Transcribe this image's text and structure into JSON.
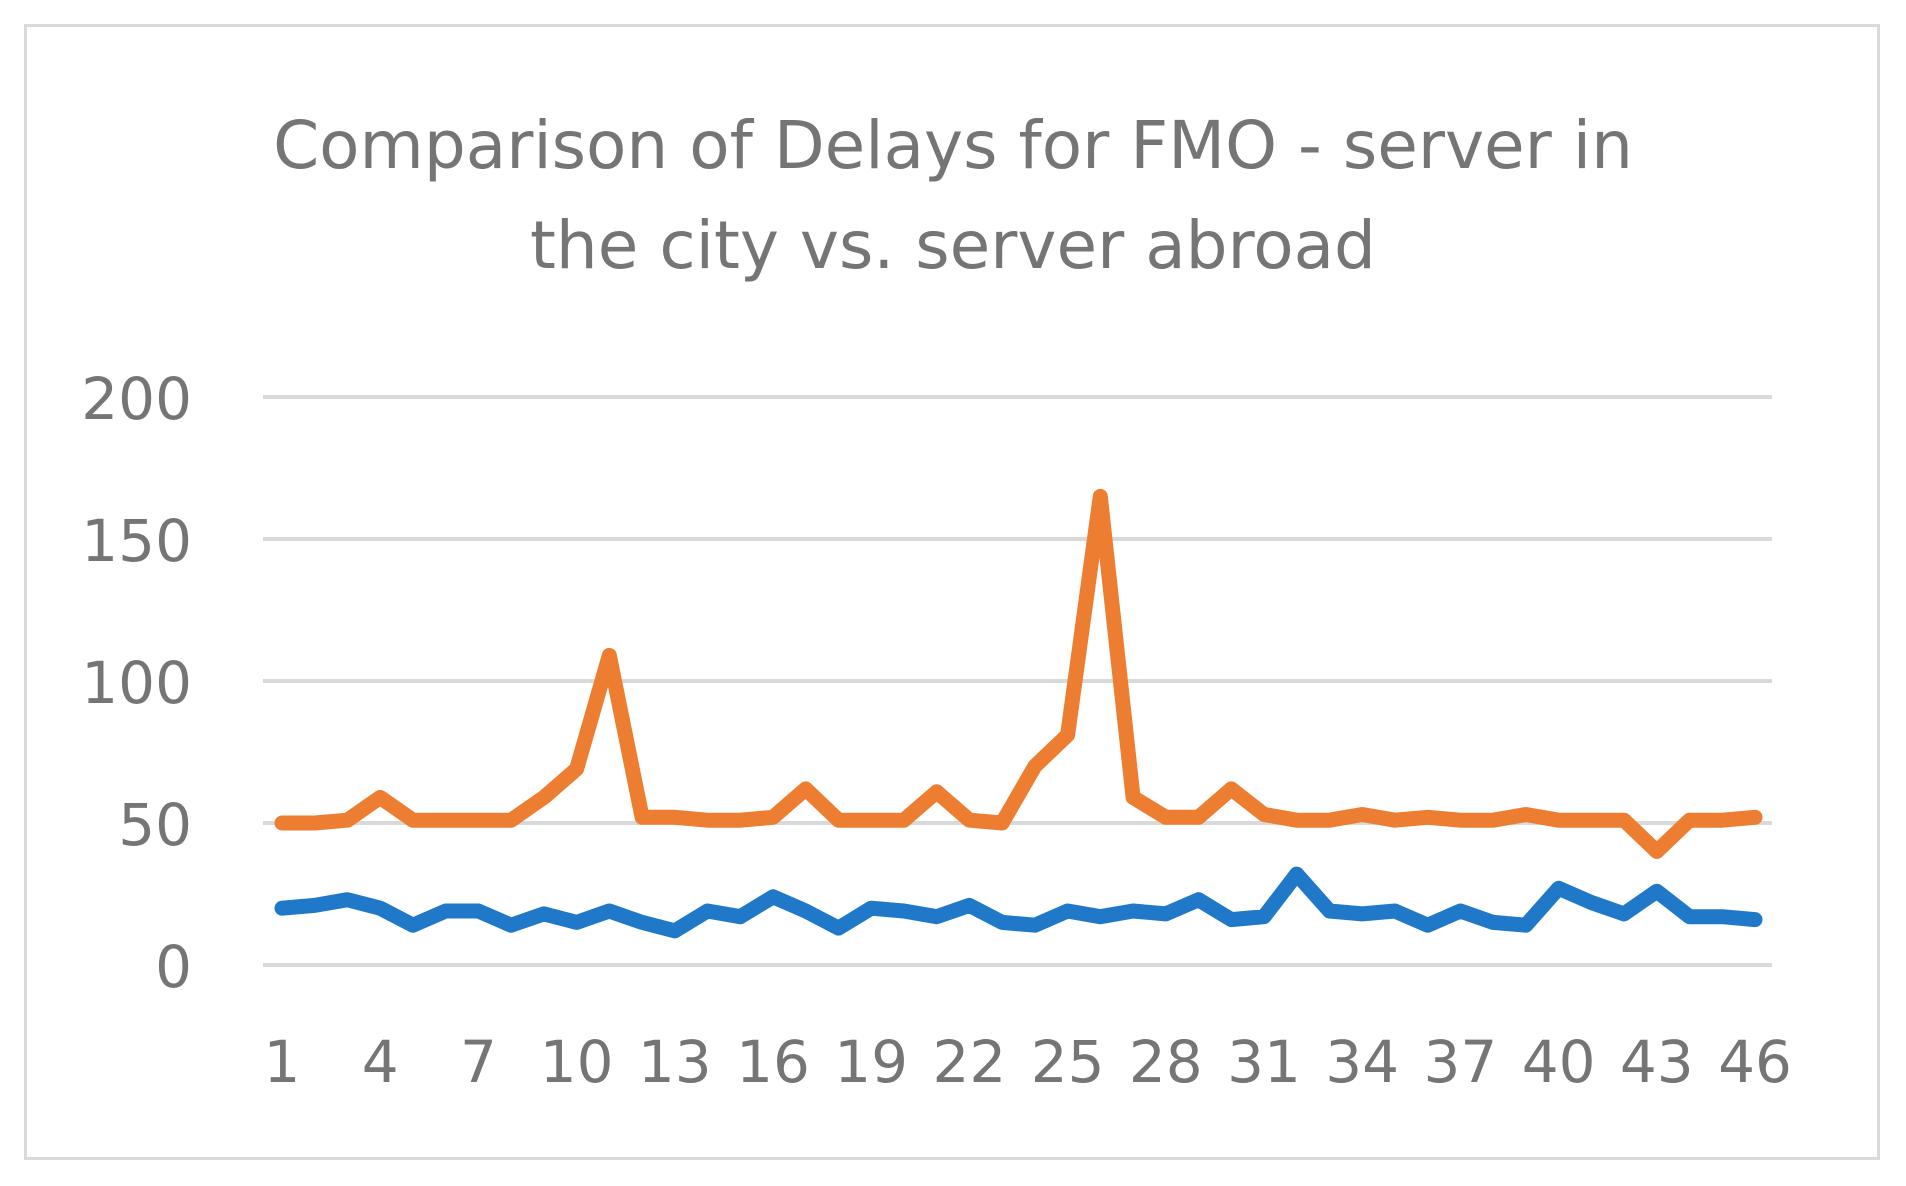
{
  "chart_data": {
    "type": "line",
    "title_lines": [
      "Comparison of Delays for FMO - server in",
      "the city vs. server abroad"
    ],
    "xlabel": "",
    "ylabel": "",
    "ylim": [
      0,
      200
    ],
    "yticks": [
      0,
      50,
      100,
      150,
      200
    ],
    "x": [
      1,
      2,
      3,
      4,
      5,
      6,
      7,
      8,
      9,
      10,
      11,
      12,
      13,
      14,
      15,
      16,
      17,
      18,
      19,
      20,
      21,
      22,
      23,
      24,
      25,
      26,
      27,
      28,
      29,
      30,
      31,
      32,
      33,
      34,
      35,
      36,
      37,
      38,
      39,
      40,
      41,
      42,
      43,
      44,
      45,
      46
    ],
    "xtick_labels": [
      "1",
      "4",
      "7",
      "10",
      "13",
      "16",
      "19",
      "22",
      "25",
      "28",
      "31",
      "34",
      "37",
      "40",
      "43",
      "46"
    ],
    "grid": true,
    "legend": "none",
    "series": [
      {
        "color": "#ED7D31",
        "values": [
          50,
          50,
          51,
          59,
          51,
          51,
          51,
          51,
          59,
          69,
          109,
          52,
          52,
          51,
          51,
          52,
          62,
          51,
          51,
          51,
          61,
          51,
          50,
          70,
          81,
          165,
          59,
          52,
          52,
          62,
          53,
          51,
          51,
          53,
          51,
          52,
          51,
          51,
          53,
          51,
          51,
          51,
          40,
          51,
          51,
          52
        ]
      },
      {
        "color": "#1F78C8",
        "values": [
          20,
          21,
          23,
          20,
          14,
          19,
          19,
          14,
          18,
          15,
          19,
          15,
          12,
          19,
          17,
          24,
          19,
          13,
          20,
          19,
          17,
          21,
          15,
          14,
          19,
          17,
          19,
          18,
          23,
          16,
          17,
          32,
          19,
          18,
          19,
          14,
          19,
          15,
          14,
          27,
          22,
          18,
          26,
          17,
          17,
          16
        ]
      }
    ]
  }
}
